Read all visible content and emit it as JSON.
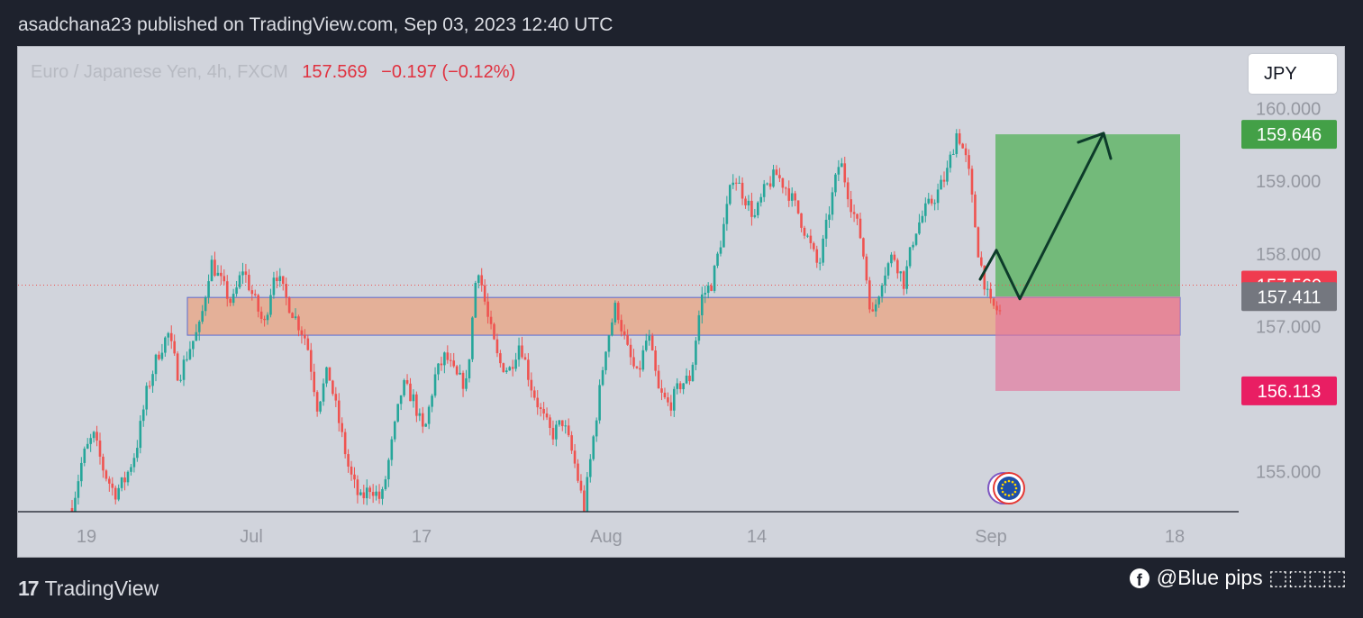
{
  "header": {
    "text": "asadchana23 published on TradingView.com, Sep 03, 2023 12:40 UTC"
  },
  "legend": {
    "symbol": "Euro / Japanese Yen, 4h, FXCM",
    "price": "157.569",
    "change": "−0.197 (−0.12%)"
  },
  "currency_button": {
    "label": "JPY"
  },
  "footer": {
    "brand": "TradingView",
    "brand_mark": "17",
    "fb_icon_glyph": "f",
    "credit": "@Blue pips ⬚⬚⬚⬚"
  },
  "colors": {
    "background": "#d1d4dc",
    "up": "#26a69a",
    "down": "#ef5350",
    "zone_fill": "#e8a98c",
    "zone_border": "#5b6bd1",
    "target_fill": "#4caf50",
    "stop_fill": "#e57399",
    "arrow": "#0d3b2a"
  },
  "chart_data": {
    "type": "candlestick",
    "symbol": "EURJPY",
    "timeframe": "4h",
    "ylim": [
      154.45,
      160.85
    ],
    "y_ticks": [
      "160.000",
      "159.000",
      "158.000",
      "157.000",
      "155.000"
    ],
    "x_ticks": [
      "19",
      "Jul",
      "17",
      "Aug",
      "14",
      "Sep",
      "18"
    ],
    "price_labels": [
      {
        "label": "159.646",
        "value": 159.646,
        "color": "#43a047"
      },
      {
        "label": "157.569",
        "value": 157.569,
        "color": "#ef3b4f"
      },
      {
        "label": "157.411",
        "value": 157.411,
        "color": "#74777f"
      },
      {
        "label": "156.113",
        "value": 156.113,
        "color": "#e91e63"
      }
    ],
    "last_price": 157.569,
    "demand_zone": {
      "top": 157.4,
      "bottom": 156.88
    },
    "position": {
      "entry": 157.411,
      "target": 159.646,
      "stop": 156.113
    },
    "projection_path": [
      157.65,
      158.05,
      157.38,
      159.66
    ],
    "price_path": [
      154.5,
      155.2,
      155.5,
      155.0,
      154.7,
      154.9,
      155.3,
      156.1,
      156.6,
      156.9,
      156.3,
      156.7,
      157.0,
      157.9,
      157.6,
      157.3,
      157.8,
      157.4,
      157.0,
      157.8,
      157.4,
      157.1,
      156.8,
      155.9,
      156.4,
      155.7,
      155.0,
      154.6,
      154.8,
      154.6,
      155.4,
      156.2,
      156.0,
      155.5,
      156.3,
      156.6,
      156.3,
      156.2,
      157.9,
      157.1,
      156.5,
      156.4,
      156.8,
      156.2,
      155.8,
      155.5,
      155.7,
      155.2,
      154.5,
      155.6,
      156.7,
      157.3,
      156.7,
      156.3,
      156.9,
      156.1,
      155.9,
      156.2,
      156.3,
      157.4,
      157.6,
      158.3,
      159.1,
      158.8,
      158.5,
      158.9,
      159.1,
      158.9,
      158.6,
      158.2,
      157.8,
      158.6,
      159.3,
      158.7,
      158.2,
      157.1,
      157.7,
      158.0,
      157.6,
      158.3,
      158.6,
      158.8,
      159.1,
      159.7,
      159.2,
      158.0,
      157.3,
      157.2
    ]
  }
}
